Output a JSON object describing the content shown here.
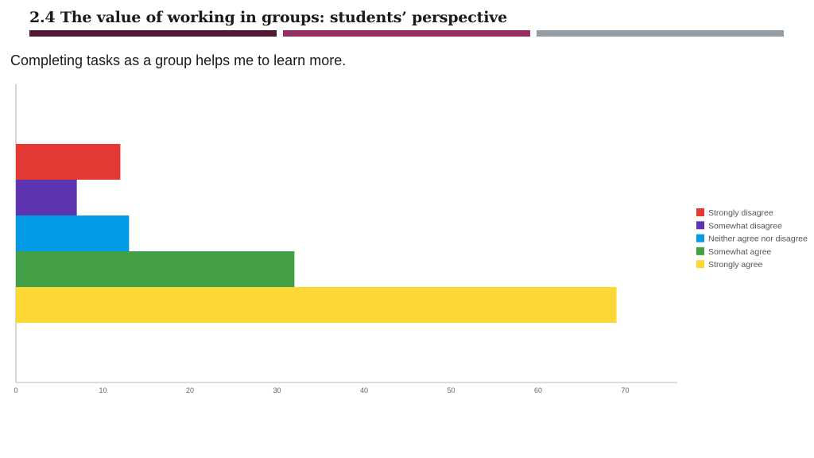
{
  "slide": {
    "title": "2.4 The value of working in groups: students’ perspective",
    "bar_colors": [
      "#4e1a38",
      "#962e64",
      "#959ea4"
    ]
  },
  "question": "Completing tasks as a group helps me to learn more.",
  "chart_data": {
    "type": "bar",
    "orientation": "horizontal",
    "title": "",
    "xlabel": "",
    "ylabel": "",
    "xlim": [
      0,
      76
    ],
    "x_ticks": [
      0,
      10,
      20,
      30,
      40,
      50,
      60,
      70
    ],
    "grid": false,
    "legend_position": "right",
    "series": [
      {
        "name": "Strongly disagree",
        "value": 12,
        "color": "#e53935"
      },
      {
        "name": "Somewhat disagree",
        "value": 7,
        "color": "#5e35b1"
      },
      {
        "name": "Neither agree nor disagree",
        "value": 13,
        "color": "#039be5"
      },
      {
        "name": "Somewhat agree",
        "value": 32,
        "color": "#43a047"
      },
      {
        "name": "Strongly agree",
        "value": 69,
        "color": "#fdd835"
      }
    ]
  }
}
